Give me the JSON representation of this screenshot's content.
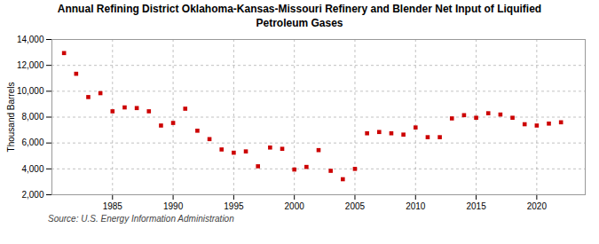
{
  "chart_data": {
    "type": "scatter",
    "title": "Annual Refining District Oklahoma-Kansas-Missouri Refinery and Blender Net Input of Liquified\nPetroleum Gases",
    "ylabel": "Thousand Barrels",
    "annotations": [
      "Source: U.S. Energy Information Administration"
    ],
    "x": [
      1981,
      1982,
      1983,
      1984,
      1985,
      1986,
      1987,
      1988,
      1989,
      1990,
      1991,
      1992,
      1993,
      1994,
      1995,
      1996,
      1997,
      1998,
      1999,
      2000,
      2001,
      2002,
      2003,
      2004,
      2005,
      2006,
      2007,
      2008,
      2009,
      2010,
      2011,
      2012,
      2013,
      2014,
      2015,
      2016,
      2017,
      2018,
      2019,
      2020,
      2021,
      2022
    ],
    "values": [
      12950,
      11350,
      9550,
      9850,
      8450,
      8750,
      8700,
      8450,
      7350,
      7550,
      8650,
      6950,
      6300,
      5500,
      5250,
      5350,
      4200,
      5650,
      5550,
      3950,
      4150,
      5450,
      3850,
      3200,
      4000,
      6750,
      6850,
      6750,
      6650,
      7200,
      6450,
      6450,
      7900,
      8150,
      7950,
      8300,
      8200,
      7950,
      7450,
      7350,
      7500,
      7600
    ],
    "color": "#cc0000",
    "marker": "square",
    "xlim": [
      1980,
      2024
    ],
    "xticks": [
      1985,
      1990,
      1995,
      2000,
      2005,
      2010,
      2015,
      2020
    ],
    "ylim": [
      2000,
      14000
    ],
    "yticks": [
      {
        "value": 2000,
        "label": "2,000"
      },
      {
        "value": 4000,
        "label": "4,000"
      },
      {
        "value": 6000,
        "label": "6,000"
      },
      {
        "value": 8000,
        "label": "8,000"
      },
      {
        "value": 10000,
        "label": "10,000"
      },
      {
        "value": 12000,
        "label": "12,000"
      },
      {
        "value": 14000,
        "label": "14,000"
      }
    ],
    "grid": true
  }
}
